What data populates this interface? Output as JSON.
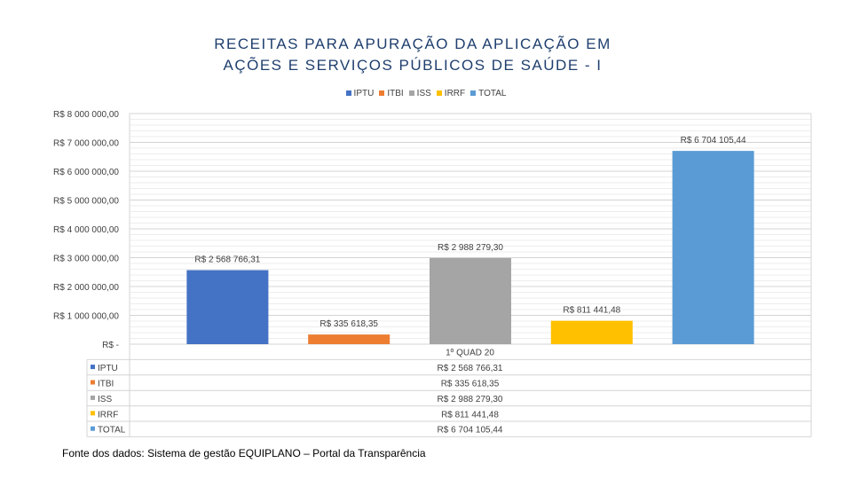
{
  "chart_data": {
    "type": "bar",
    "title_lines": [
      "RECEITAS PARA APURAÇÃO DA APLICAÇÃO EM",
      "AÇÕES E SERVIÇOS PÚBLICOS DE SAÚDE - I"
    ],
    "categories": [
      "1º QUAD 20"
    ],
    "series": [
      {
        "name": "IPTU",
        "value": 2568766.31,
        "label": "R$ 2 568 766,31",
        "color": "#4472c4"
      },
      {
        "name": "ITBI",
        "value": 335618.35,
        "label": "R$ 335 618,35",
        "color": "#ed7d31"
      },
      {
        "name": "ISS",
        "value": 2988279.3,
        "label": "R$ 2 988 279,30",
        "color": "#a5a5a5"
      },
      {
        "name": "IRRF",
        "value": 811441.48,
        "label": "R$ 811 441,48",
        "color": "#ffc000"
      },
      {
        "name": "TOTAL",
        "value": 6704105.44,
        "label": "R$ 6 704 105,44",
        "color": "#5b9bd5"
      }
    ],
    "ylim": [
      0,
      8000000
    ],
    "yticks": [
      {
        "value": 8000000,
        "label": "R$ 8 000 000,00"
      },
      {
        "value": 7000000,
        "label": "R$ 7 000 000,00"
      },
      {
        "value": 6000000,
        "label": "R$ 6 000 000,00"
      },
      {
        "value": 5000000,
        "label": "R$ 5 000 000,00"
      },
      {
        "value": 4000000,
        "label": "R$ 4 000 000,00"
      },
      {
        "value": 3000000,
        "label": "R$ 3 000 000,00"
      },
      {
        "value": 2000000,
        "label": "R$ 2 000 000,00"
      },
      {
        "value": 1000000,
        "label": "R$ 1 000 000,00"
      },
      {
        "value": 0,
        "label": "R$ -"
      }
    ],
    "grid": true,
    "legend_position": "top",
    "data_table": true
  },
  "source_note": "Fonte dos dados: Sistema de gestão EQUIPLANO – Portal da Transparência"
}
